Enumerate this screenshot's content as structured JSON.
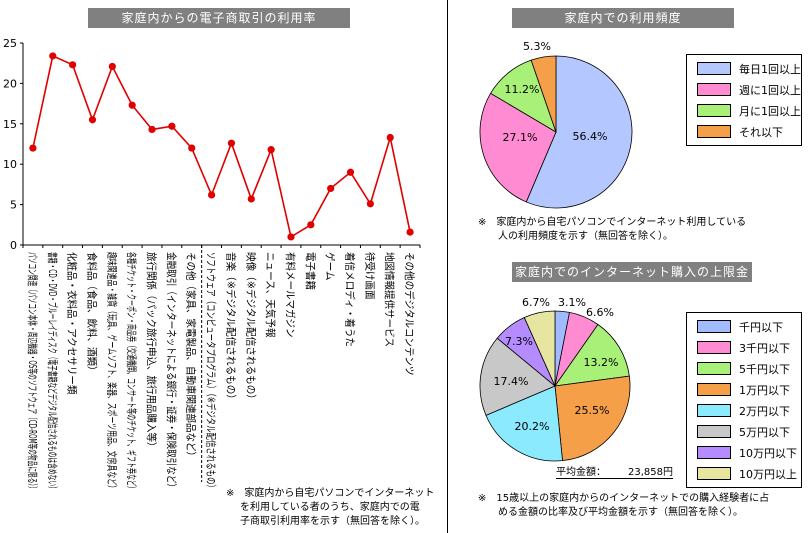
{
  "banners": {
    "left": "家庭内からの電子商取引の利用率",
    "top_right": "家庭内での利用頻度",
    "bottom_right": "家庭内でのインターネット購入の上限金額"
  },
  "notes": {
    "left": [
      "※　家庭内から自宅パソコンでインターネット",
      "を利用している者のうち、家庭内での電",
      "子商取引利用率を示す（無回答を除く）。"
    ],
    "top_right": [
      "※　家庭内から自宅パソコンでインターネット利用している",
      "人の利用頻度を示す（無回答を除く）。"
    ],
    "bottom_right": [
      "※　15歳以上の家庭内からのインターネットでの購入経験者に占",
      "める金額の比率及び平均金額を示す（無回答を除く）。"
    ]
  },
  "average": {
    "label": "平均金額：",
    "value": "23,858円"
  },
  "chart_data": [
    {
      "type": "line",
      "title": "家庭内からの電子商取引の利用率",
      "ylim": [
        0,
        25
      ],
      "yticks": [
        "0",
        "5",
        "10",
        "15",
        "20",
        "25"
      ],
      "categories": [
        "パソコン関連（パソコン本体・周辺機器・OS等のソフトウェア（CD-ROM等の物品に限る））",
        "書籍・CD・DVD・ブルーレイディスク（電子書籍などデジタル配信されるものは含めない）",
        "化粧品・衣料品・アクセサリー類",
        "食料品（食品、飲料、酒類）",
        "趣味関連品・雑貨（玩具、ゲームソフト、楽器、スポーツ用品、文房具など）",
        "各種チケット・クーポン・商品券（交通機関、コンサート等のチケット、ギフト券など）",
        "旅行関係（パック旅行申込、旅行用品購入等）",
        "金融取引（インターネットによる銀行・証券・保険取引など）",
        "その他（家具、家電製品、自動車関連部品など）",
        "ソフトウェア（コンピュータプログラム）（※デジタル配信されるもの）",
        "音楽（※デジタル配信されるもの）",
        "映像（※デジタル配信されるもの）",
        "ニュース、天気予報",
        "有料メールマガジン",
        "電子書籍",
        "ゲーム",
        "着信メロディ・着うた",
        "待受け画面",
        "地図情報提供サービス",
        "その他のデジタルコンテンツ"
      ],
      "values": [
        12.0,
        23.4,
        22.3,
        15.5,
        22.1,
        17.3,
        14.3,
        14.7,
        12.0,
        6.2,
        12.6,
        5.7,
        11.8,
        1.0,
        2.5,
        7.0,
        9.0,
        5.1,
        13.3,
        1.6
      ],
      "color": "#e00000"
    },
    {
      "type": "pie",
      "title": "家庭内での利用頻度",
      "labels": [
        "毎日1回以上",
        "週に1回以上",
        "月に1回以上",
        "それ以下"
      ],
      "values": [
        56.4,
        27.1,
        11.2,
        5.3
      ],
      "value_labels": [
        "56.4%",
        "27.1%",
        "11.2%",
        "5.3%"
      ],
      "colors": [
        "#b4c8ff",
        "#ff8cd2",
        "#a8f078",
        "#f5a048"
      ],
      "legend": "right"
    },
    {
      "type": "pie",
      "title": "家庭内でのインターネット購入の上限金額",
      "labels": [
        "千円以下",
        "3千円以下",
        "5千円以下",
        "1万円以下",
        "2万円以下",
        "5万円以下",
        "10万円以下",
        "10万円以上"
      ],
      "values": [
        3.1,
        6.6,
        13.2,
        25.5,
        20.2,
        17.4,
        7.3,
        6.7
      ],
      "value_labels": [
        "3.1%",
        "6.6%",
        "13.2%",
        "25.5%",
        "20.2%",
        "17.4%",
        "7.3%",
        "6.7%"
      ],
      "colors": [
        "#a0bcff",
        "#ff8cd2",
        "#a8f078",
        "#f5a048",
        "#8ceaff",
        "#c8c8c8",
        "#b48cff",
        "#e6e6a0"
      ],
      "legend": "right"
    }
  ]
}
